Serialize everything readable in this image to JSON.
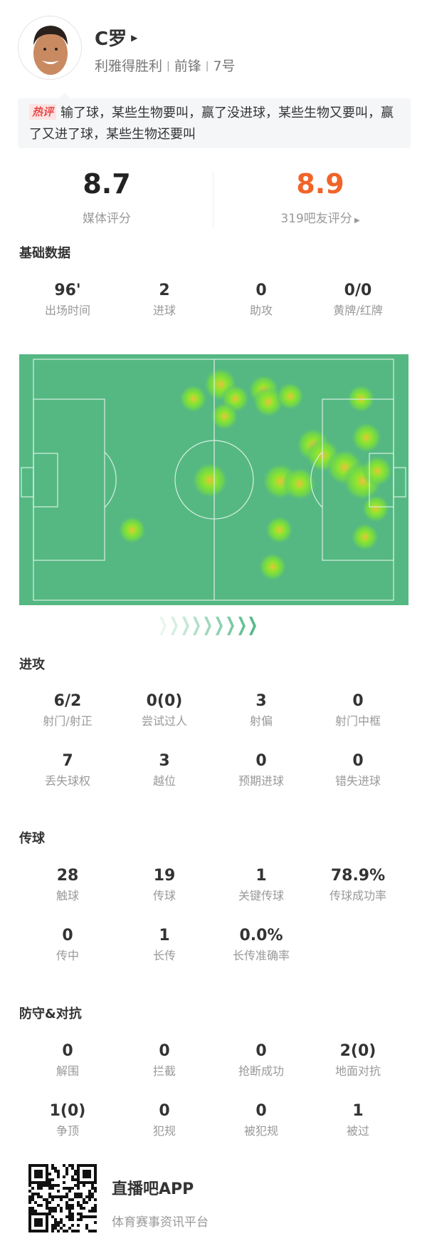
{
  "player": {
    "name": "C罗",
    "team": "利雅得胜利",
    "position": "前锋",
    "number": "7号"
  },
  "comment": {
    "tag": "热评",
    "text": "输了球，某些生物要叫，赢了没进球，某些生物又要叫，赢了又进了球，某些生物还要叫"
  },
  "ratings": {
    "media": {
      "value": "8.7",
      "label": "媒体评分"
    },
    "fans": {
      "value": "8.9",
      "label": "319吧友评分",
      "color": "#f0642a"
    }
  },
  "basic": {
    "title": "基础数据",
    "items": [
      {
        "v": "96'",
        "l": "出场时间"
      },
      {
        "v": "2",
        "l": "进球"
      },
      {
        "v": "0",
        "l": "助攻"
      },
      {
        "v": "0/0",
        "l": "黄牌/红牌"
      }
    ]
  },
  "heatmap": {
    "pitch_color": "#55b883"
  },
  "attack": {
    "title": "进攻",
    "items": [
      {
        "v": "6/2",
        "l": "射门/射正"
      },
      {
        "v": "0(0)",
        "l": "尝试过人"
      },
      {
        "v": "3",
        "l": "射偏"
      },
      {
        "v": "0",
        "l": "射门中框"
      },
      {
        "v": "7",
        "l": "丢失球权"
      },
      {
        "v": "3",
        "l": "越位"
      },
      {
        "v": "0",
        "l": "预期进球"
      },
      {
        "v": "0",
        "l": "错失进球"
      }
    ]
  },
  "passing": {
    "title": "传球",
    "items": [
      {
        "v": "28",
        "l": "触球"
      },
      {
        "v": "19",
        "l": "传球"
      },
      {
        "v": "1",
        "l": "关键传球"
      },
      {
        "v": "78.9%",
        "l": "传球成功率"
      },
      {
        "v": "0",
        "l": "传中"
      },
      {
        "v": "1",
        "l": "长传"
      },
      {
        "v": "0.0%",
        "l": "长传准确率"
      }
    ]
  },
  "defense": {
    "title": "防守&对抗",
    "items": [
      {
        "v": "0",
        "l": "解围"
      },
      {
        "v": "0",
        "l": "拦截"
      },
      {
        "v": "0",
        "l": "抢断成功"
      },
      {
        "v": "2(0)",
        "l": "地面对抗"
      },
      {
        "v": "1(0)",
        "l": "争顶"
      },
      {
        "v": "0",
        "l": "犯规"
      },
      {
        "v": "0",
        "l": "被犯规"
      },
      {
        "v": "1",
        "l": "被过"
      }
    ]
  },
  "footer": {
    "app": "直播吧APP",
    "slogan": "体育赛事资讯平台"
  }
}
